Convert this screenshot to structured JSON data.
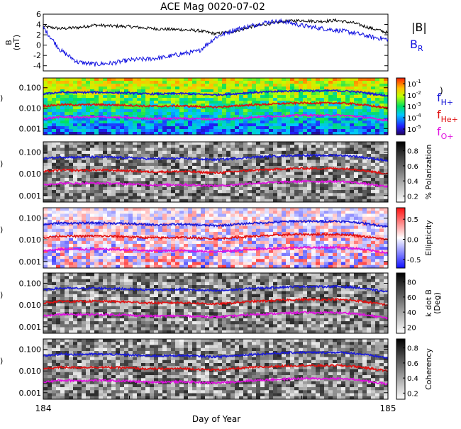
{
  "title": "ACE Mag 0020-07-02",
  "xlabel": "Day of Year",
  "x_ticks": [
    "184",
    "185"
  ],
  "y_ticks_freq": [
    "0.100",
    "0.010",
    "0.001"
  ],
  "colors": {
    "B_total": "#000000",
    "B_R": "#1010e0",
    "f_H": "#1a1ad8",
    "f_He": "#e01010",
    "f_O": "#e010e0"
  },
  "legend": {
    "B_total": "|B|",
    "B_R": "B",
    "B_R_sub": "R",
    "f_prefix": "f",
    "f_H_sub": "H+",
    "f_He_sub": "He+",
    "f_O_sub": "O+"
  },
  "panel0": {
    "ylabel_line1": "B",
    "ylabel_line2": "(nT)",
    "y_ticks": [
      "6",
      "4",
      "2",
      "0",
      "-2",
      "-4"
    ]
  },
  "panels": [
    {
      "id": "power",
      "colorbar": "rainbow",
      "clabel": "",
      "cticks": [
        "10",
        "10",
        "10",
        "10",
        "10"
      ],
      "cticks_sup": [
        "-1",
        "-2",
        "-3",
        "-4",
        "-5"
      ],
      "bracket": ")"
    },
    {
      "id": "polarization",
      "colorbar": "gray",
      "clabel": "% Polarization",
      "cticks": [
        "0.8",
        "0.6",
        "0.4",
        "0.2"
      ]
    },
    {
      "id": "ellipticity",
      "colorbar": "bwr",
      "clabel": "Ellipticity",
      "cticks": [
        "0.5",
        "0.0",
        "-0.5"
      ]
    },
    {
      "id": "kdotb",
      "colorbar": "gray",
      "clabel": "k dot B",
      "clabel2": "(Deg)",
      "cticks": [
        "80",
        "60",
        "40",
        "20"
      ]
    },
    {
      "id": "coherency",
      "colorbar": "gray",
      "clabel": "Coherency",
      "cticks": [
        "0.8",
        "0.6",
        "0.4",
        "0.2"
      ]
    }
  ],
  "chart_data": {
    "type": "line",
    "title": "ACE Mag 0020-07-02",
    "xlabel": "Day of Year",
    "xlim": [
      184,
      185
    ],
    "panel0_ylim": [
      -5,
      6
    ],
    "freq_ylim": [
      0.0005,
      0.3
    ],
    "freq_scale": "log",
    "x": [
      184.0,
      184.05,
      184.1,
      184.15,
      184.2,
      184.25,
      184.3,
      184.35,
      184.4,
      184.45,
      184.5,
      184.55,
      184.6,
      184.65,
      184.7,
      184.75,
      184.8,
      184.85,
      184.9,
      184.95,
      185.0
    ],
    "series": [
      {
        "name": "|B|",
        "values": [
          3.6,
          3.2,
          3.4,
          3.9,
          3.7,
          3.6,
          3.3,
          3.1,
          3.0,
          2.8,
          2.2,
          2.6,
          3.5,
          4.1,
          4.6,
          4.8,
          4.6,
          4.8,
          4.3,
          3.3,
          2.4
        ]
      },
      {
        "name": "B_R",
        "values": [
          3.4,
          -1.0,
          -3.3,
          -3.7,
          -3.5,
          -2.9,
          -2.7,
          -2.4,
          -1.7,
          -1.2,
          1.5,
          2.9,
          3.7,
          4.5,
          4.6,
          3.8,
          3.3,
          2.9,
          2.4,
          1.6,
          1.1
        ]
      },
      {
        "name": "f_H+",
        "values": [
          0.05,
          0.06,
          0.058,
          0.06,
          0.058,
          0.055,
          0.05,
          0.05,
          0.052,
          0.048,
          0.045,
          0.05,
          0.058,
          0.062,
          0.068,
          0.072,
          0.07,
          0.072,
          0.066,
          0.052,
          0.04
        ]
      },
      {
        "name": "f_He+",
        "values": [
          0.0125,
          0.015,
          0.0145,
          0.015,
          0.0145,
          0.0138,
          0.0125,
          0.0125,
          0.013,
          0.012,
          0.0112,
          0.0125,
          0.0145,
          0.0155,
          0.017,
          0.018,
          0.0175,
          0.018,
          0.0165,
          0.013,
          0.01
        ]
      },
      {
        "name": "f_O+",
        "values": [
          0.0031,
          0.0037,
          0.0036,
          0.0037,
          0.0036,
          0.0034,
          0.0031,
          0.0031,
          0.0032,
          0.003,
          0.0028,
          0.0031,
          0.0036,
          0.0039,
          0.0042,
          0.0045,
          0.0044,
          0.0045,
          0.0041,
          0.0032,
          0.0025
        ]
      }
    ]
  }
}
